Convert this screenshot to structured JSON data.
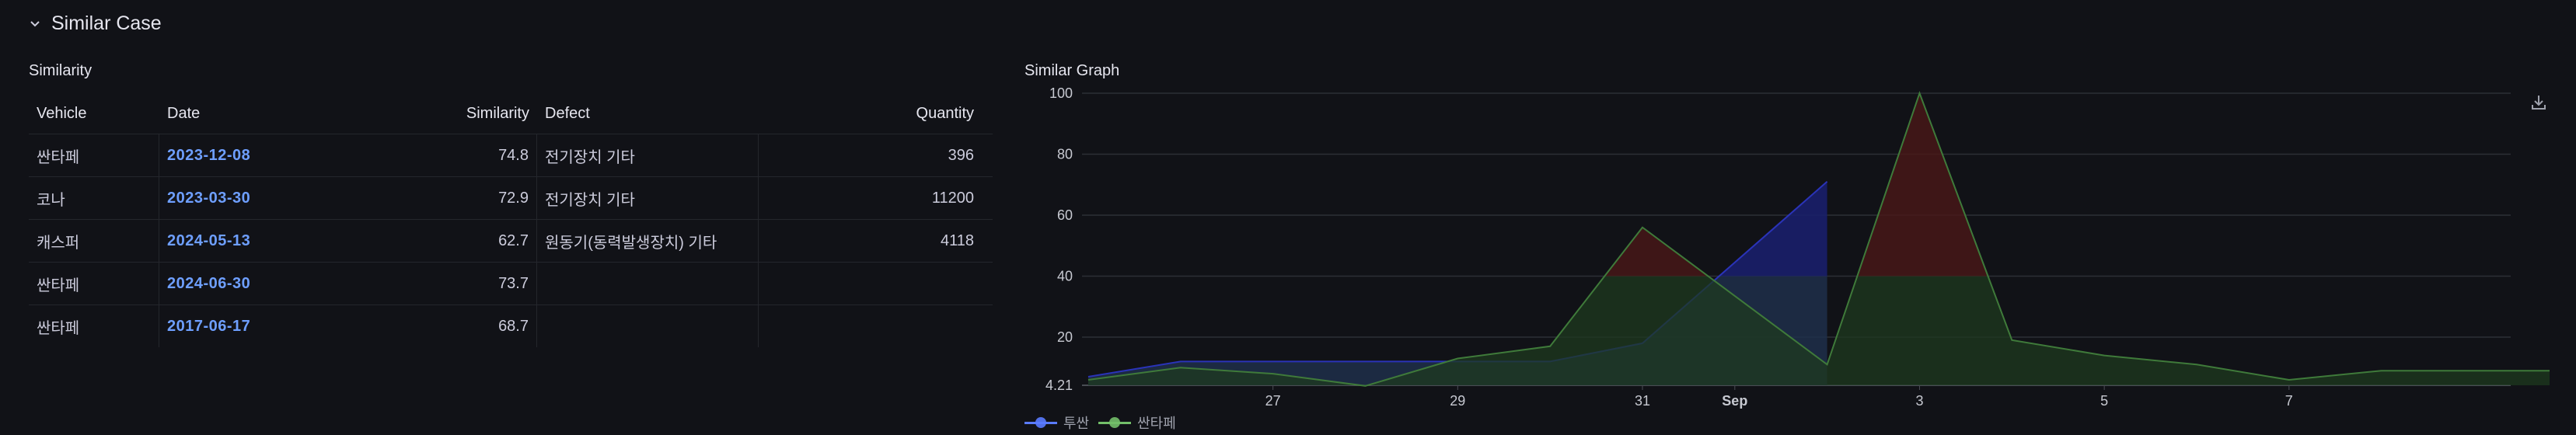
{
  "row": {
    "title": "Similar Case"
  },
  "similarity_panel": {
    "title": "Similarity",
    "columns": [
      "Vehicle",
      "Date",
      "Similarity",
      "Defect",
      "Quantity"
    ],
    "rows": [
      {
        "vehicle": "싼타페",
        "date": "2023-12-08",
        "similarity": "74.8",
        "defect": "전기장치 기타",
        "quantity": "396"
      },
      {
        "vehicle": "코나",
        "date": "2023-03-30",
        "similarity": "72.9",
        "defect": "전기장치 기타",
        "quantity": "11200"
      },
      {
        "vehicle": "캐스퍼",
        "date": "2024-05-13",
        "similarity": "62.7",
        "defect": "원동기(동력발생장치) 기타",
        "quantity": "4118"
      },
      {
        "vehicle": "싼타페",
        "date": "2024-06-30",
        "similarity": "73.7",
        "defect": "",
        "quantity": ""
      },
      {
        "vehicle": "싼타페",
        "date": "2017-06-17",
        "similarity": "68.7",
        "defect": "",
        "quantity": ""
      }
    ]
  },
  "graph_panel": {
    "title": "Similar Graph",
    "download_icon": "download-icon",
    "legend": [
      {
        "name": "투싼",
        "color": "#5a7bff"
      },
      {
        "name": "싼타페",
        "color": "#73bf69"
      }
    ]
  },
  "chart_data": {
    "type": "area",
    "ylim": [
      4.21,
      100
    ],
    "y_ticks": [
      "4.21",
      "20",
      "40",
      "60",
      "80",
      "100"
    ],
    "x_ticks": [
      "27",
      "29",
      "31",
      "Sep",
      "3",
      "5",
      "7"
    ],
    "x_range": [
      "Aug 25",
      "Sep 8"
    ],
    "series": [
      {
        "name": "투싼",
        "color": "#5a7bff",
        "x": [
          "Aug 25",
          "Aug 26",
          "Aug 27",
          "Aug 28",
          "Aug 29",
          "Aug 30",
          "Aug 31",
          "Sep 1"
        ],
        "values": [
          7,
          12,
          12,
          12,
          12,
          12,
          18,
          71
        ]
      },
      {
        "name": "싼타페",
        "color": "#73bf69",
        "x": [
          "Aug 25",
          "Aug 26",
          "Aug 27",
          "Aug 28",
          "Aug 29",
          "Aug 30",
          "Aug 31",
          "Sep 1",
          "Sep 2",
          "Sep 3",
          "Sep 4",
          "Sep 5",
          "Sep 6",
          "Sep 7",
          "Sep 8",
          "Sep 9"
        ],
        "values": [
          6,
          10,
          8,
          4,
          13,
          17,
          56,
          11,
          100,
          19,
          14,
          11,
          6,
          9,
          9,
          9
        ]
      }
    ],
    "threshold": {
      "value": 40,
      "below_color": "#1d3a1f",
      "above_color": "#4a1818"
    }
  }
}
